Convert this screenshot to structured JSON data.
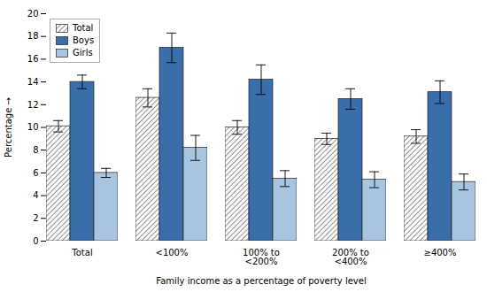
{
  "chart_data": {
    "type": "bar",
    "categories": [
      "Total",
      "<100%",
      "100% to\n<200%",
      "200% to\n<400%",
      "≥400%"
    ],
    "series": [
      {
        "name": "Total",
        "color": "#ffffff",
        "values": [
          10.1,
          12.6,
          10.0,
          9.0,
          9.2
        ],
        "errors": [
          0.5,
          0.8,
          0.6,
          0.5,
          0.6
        ]
      },
      {
        "name": "Boys",
        "color": "#3a6eaa",
        "values": [
          14.0,
          17.0,
          14.2,
          12.5,
          13.1
        ],
        "errors": [
          0.6,
          1.3,
          1.3,
          0.9,
          1.0
        ]
      },
      {
        "name": "Girls",
        "color": "#a8c4e0",
        "values": [
          6.0,
          8.2,
          5.5,
          5.4,
          5.2
        ],
        "errors": [
          0.4,
          1.1,
          0.7,
          0.7,
          0.7
        ]
      }
    ],
    "xlabel": "Family income as a percentage of poverty level",
    "ylabel": "Percentage",
    "ylim": [
      0,
      20
    ],
    "yticks": [
      0,
      2,
      4,
      6,
      8,
      10,
      12,
      14,
      16,
      18,
      20
    ],
    "grid": false,
    "legend": "upper left"
  }
}
